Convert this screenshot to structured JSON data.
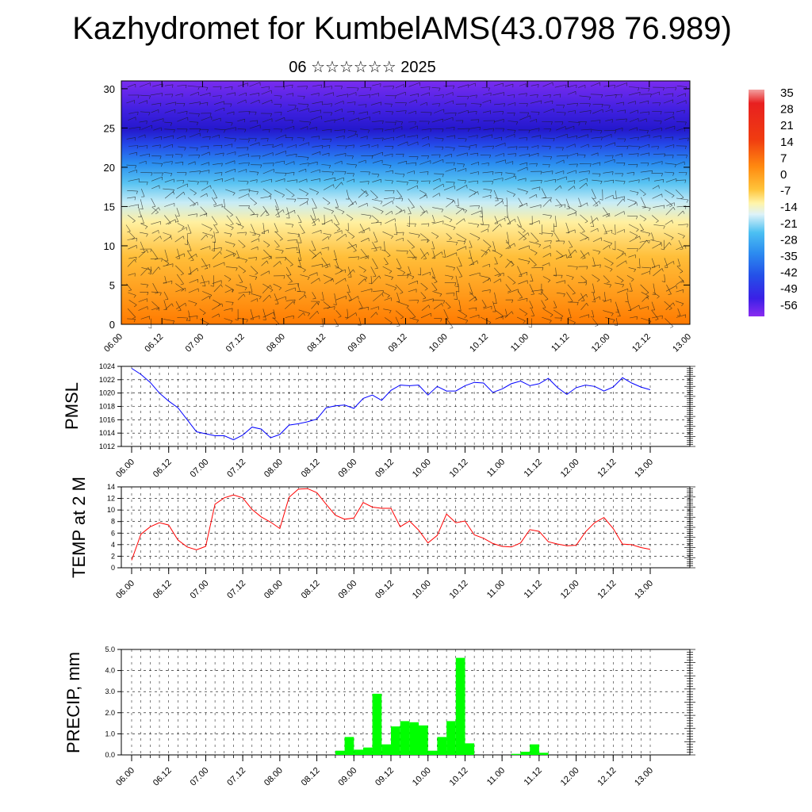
{
  "header": {
    "title": "Kazhydromet for KumbelAMS(43.0798 76.989)",
    "subtitle": "06 ☆☆☆☆☆☆ 2025"
  },
  "colorbar": {
    "labels": [
      "35",
      "28",
      "21",
      "14",
      "7",
      "0",
      "-7",
      "-14",
      "-21",
      "-28",
      "-35",
      "-42",
      "-49",
      "-56"
    ]
  },
  "chart_data": [
    {
      "type": "heatmap",
      "name": "cross-section",
      "x_tick_labels": [
        "06.00",
        "06.12",
        "07.00",
        "07.12",
        "08.00",
        "08.12",
        "09.00",
        "09.12",
        "10.00",
        "10.12",
        "11.00",
        "11.12",
        "12.00",
        "12.12",
        "13.00"
      ],
      "y_tick_labels": [
        "0",
        "5",
        "10",
        "15",
        "20",
        "25",
        "30"
      ],
      "ylim": [
        0,
        31
      ],
      "colorbar_range": [
        -56,
        35
      ]
    },
    {
      "type": "line",
      "ylabel": "PMSL",
      "color": "#0000ff",
      "ylim": [
        1012,
        1024
      ],
      "y_ticks": [
        "1012",
        "1014",
        "1016",
        "1018",
        "1020",
        "1022",
        "1024"
      ],
      "x_tick_labels": [
        "06.00",
        "06.12",
        "07.00",
        "07.12",
        "08.00",
        "08.12",
        "09.00",
        "09.12",
        "10.00",
        "10.12",
        "11.00",
        "11.12",
        "12.00",
        "12.12",
        "13.00"
      ],
      "values": [
        1023.7,
        1022.8,
        1021.6,
        1020.0,
        1018.8,
        1017.8,
        1016.0,
        1014.2,
        1013.9,
        1013.6,
        1013.6,
        1013.0,
        1013.7,
        1014.9,
        1014.6,
        1013.3,
        1013.8,
        1015.2,
        1015.4,
        1015.7,
        1016.1,
        1017.8,
        1018.1,
        1018.2,
        1017.7,
        1019.2,
        1019.7,
        1018.9,
        1020.4,
        1021.2,
        1021.1,
        1021.2,
        1019.7,
        1021.0,
        1020.3,
        1020.3,
        1021.1,
        1021.6,
        1021.5,
        1020.1,
        1020.6,
        1021.4,
        1021.8,
        1021.1,
        1021.4,
        1022.2,
        1020.8,
        1019.8,
        1020.8,
        1021.2,
        1021.0,
        1020.3,
        1020.9,
        1022.3,
        1021.5,
        1020.9,
        1020.5
      ]
    },
    {
      "type": "line",
      "ylabel": "TEMP at 2 M",
      "color": "#ff0000",
      "ylim": [
        0,
        14
      ],
      "y_ticks": [
        "0",
        "2",
        "4",
        "6",
        "8",
        "10",
        "12",
        "14"
      ],
      "x_tick_labels": [
        "06.00",
        "06.12",
        "07.00",
        "07.12",
        "08.00",
        "08.12",
        "09.00",
        "09.12",
        "10.00",
        "10.12",
        "11.00",
        "11.12",
        "12.00",
        "12.12",
        "13.00"
      ],
      "values": [
        1.3,
        5.8,
        7.1,
        7.8,
        7.4,
        4.8,
        3.6,
        3.1,
        3.7,
        11.0,
        12.1,
        12.6,
        12.1,
        10.1,
        8.8,
        7.9,
        6.8,
        12.2,
        13.6,
        13.7,
        13.0,
        11.0,
        9.1,
        8.4,
        8.6,
        11.3,
        10.5,
        10.3,
        10.3,
        7.1,
        8.1,
        6.5,
        4.3,
        5.6,
        9.3,
        7.8,
        8.1,
        5.7,
        5.1,
        4.2,
        3.7,
        3.6,
        4.3,
        6.6,
        6.3,
        4.5,
        4.1,
        3.8,
        3.9,
        6.2,
        7.8,
        8.7,
        6.8,
        4.1,
        4.0,
        3.5,
        3.2
      ]
    },
    {
      "type": "bar",
      "ylabel": "PRECIP, mm",
      "color": "#00ff00",
      "ylim": [
        0,
        5
      ],
      "y_ticks": [
        "0.0",
        "1.0",
        "2.0",
        "3.0",
        "4.0",
        "5.0"
      ],
      "x_tick_labels": [
        "06.00",
        "06.12",
        "07.00",
        "07.12",
        "08.00",
        "08.12",
        "09.00",
        "09.12",
        "10.00",
        "10.12",
        "11.00",
        "11.12",
        "12.00",
        "12.12",
        "13.00"
      ],
      "values": [
        0,
        0,
        0,
        0,
        0,
        0,
        0,
        0,
        0,
        0,
        0,
        0,
        0,
        0,
        0,
        0,
        0,
        0,
        0,
        0,
        0,
        0,
        0.2,
        0.85,
        0.25,
        0.35,
        2.9,
        0.5,
        1.35,
        1.6,
        1.55,
        1.4,
        0.2,
        0.85,
        1.6,
        4.6,
        0.55,
        0,
        0,
        0,
        0,
        0.05,
        0.15,
        0.5,
        0.1,
        0,
        0,
        0,
        0,
        0,
        0,
        0,
        0,
        0,
        0,
        0,
        0
      ]
    }
  ]
}
